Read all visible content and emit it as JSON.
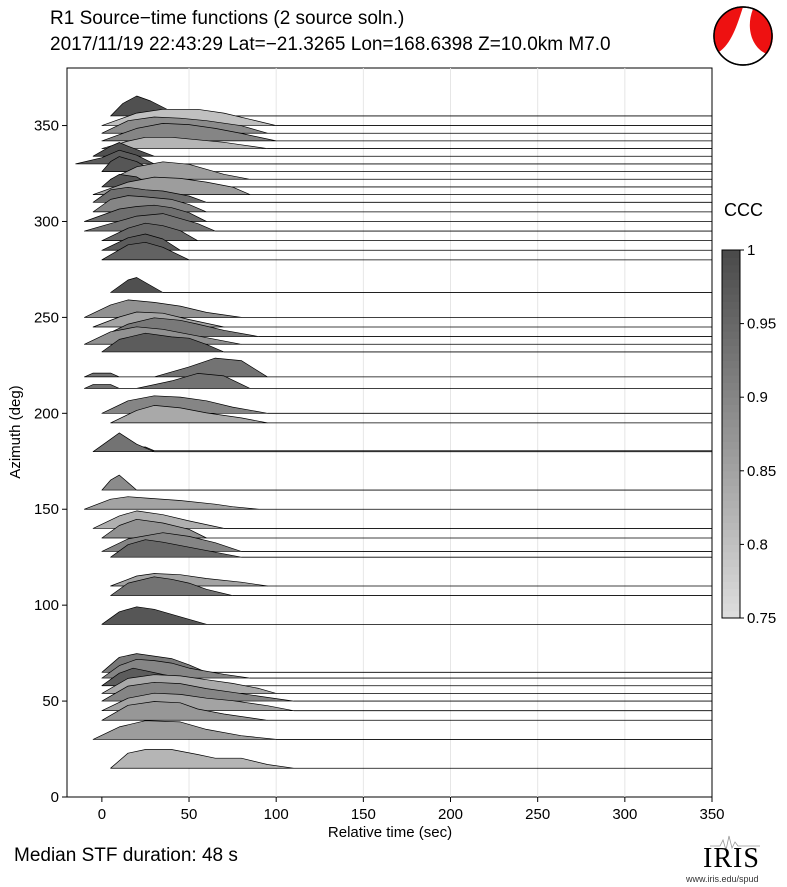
{
  "title_line1": "R1 Source−time functions (2 source soln.)",
  "title_line2": "2017/11/19 22:43:29  Lat=−21.3265 Lon=168.6398  Z=10.0km  M7.0",
  "median_text": "Median STF duration: 48 s",
  "iris": {
    "logo_text": "IRIS",
    "url": "www.iris.edu/spud"
  },
  "chart_data": {
    "type": "area",
    "xlabel": "Relative time (sec)",
    "ylabel": "Azimuth (deg)",
    "xlim": [
      -20,
      350
    ],
    "ylim": [
      0,
      380
    ],
    "xticks": [
      0,
      50,
      100,
      150,
      200,
      250,
      300,
      350
    ],
    "yticks": [
      0,
      50,
      100,
      150,
      200,
      250,
      300,
      350
    ],
    "grid": "vertical",
    "colorbar": {
      "label": "CCC",
      "range": [
        0.75,
        1
      ],
      "ticks": [
        "0.75",
        "0.8",
        "0.85",
        "0.9",
        "0.95",
        "1"
      ]
    },
    "traces": [
      {
        "az": 15,
        "ccc": 0.82,
        "x": [
          5,
          15,
          25,
          40,
          55,
          65,
          80,
          95,
          110
        ],
        "y": [
          0,
          12,
          15,
          15,
          11,
          8,
          8,
          3,
          0
        ]
      },
      {
        "az": 30,
        "ccc": 0.86,
        "x": [
          -5,
          10,
          25,
          45,
          60,
          80,
          100
        ],
        "y": [
          0,
          10,
          15,
          14,
          8,
          3,
          0
        ]
      },
      {
        "az": 40,
        "ccc": 0.87,
        "x": [
          0,
          15,
          30,
          45,
          55,
          70,
          95
        ],
        "y": [
          0,
          12,
          15,
          14,
          9,
          5,
          0
        ]
      },
      {
        "az": 45,
        "ccc": 0.85,
        "x": [
          0,
          15,
          30,
          45,
          60,
          75,
          95,
          110
        ],
        "y": [
          0,
          10,
          14,
          13,
          10,
          8,
          4,
          0
        ]
      },
      {
        "az": 50,
        "ccc": 0.9,
        "x": [
          0,
          15,
          30,
          45,
          60,
          75,
          90,
          110
        ],
        "y": [
          0,
          12,
          15,
          14,
          10,
          7,
          4,
          0
        ]
      },
      {
        "az": 54,
        "ccc": 0.84,
        "x": [
          0,
          15,
          30,
          45,
          60,
          75,
          90,
          100
        ],
        "y": [
          0,
          12,
          15,
          14,
          11,
          8,
          4,
          0
        ]
      },
      {
        "az": 58,
        "ccc": 0.97,
        "x": [
          0,
          10,
          18,
          25,
          35,
          50,
          70
        ],
        "y": [
          0,
          10,
          14,
          12,
          9,
          5,
          0
        ]
      },
      {
        "az": 62,
        "ccc": 0.9,
        "x": [
          0,
          10,
          20,
          30,
          40,
          50,
          70,
          85
        ],
        "y": [
          0,
          10,
          15,
          14,
          12,
          8,
          3,
          0
        ]
      },
      {
        "az": 65,
        "ccc": 0.92,
        "x": [
          0,
          10,
          20,
          30,
          40,
          50,
          60
        ],
        "y": [
          0,
          12,
          15,
          13,
          11,
          6,
          0
        ]
      },
      {
        "az": 90,
        "ccc": 0.98,
        "x": [
          0,
          10,
          20,
          30,
          45,
          60
        ],
        "y": [
          0,
          10,
          14,
          12,
          6,
          0
        ]
      },
      {
        "az": 105,
        "ccc": 0.93,
        "x": [
          5,
          15,
          30,
          40,
          50,
          60,
          75
        ],
        "y": [
          0,
          10,
          15,
          13,
          10,
          5,
          0
        ]
      },
      {
        "az": 110,
        "ccc": 0.85,
        "x": [
          5,
          20,
          30,
          45,
          60,
          80,
          95
        ],
        "y": [
          0,
          8,
          10,
          9,
          6,
          3,
          0
        ]
      },
      {
        "az": 125,
        "ccc": 0.95,
        "x": [
          5,
          15,
          25,
          35,
          50,
          65,
          80
        ],
        "y": [
          0,
          10,
          14,
          12,
          8,
          4,
          0
        ]
      },
      {
        "az": 128,
        "ccc": 0.9,
        "x": [
          0,
          15,
          35,
          50,
          65,
          80
        ],
        "y": [
          0,
          10,
          15,
          12,
          7,
          0
        ]
      },
      {
        "az": 135,
        "ccc": 0.88,
        "x": [
          0,
          10,
          20,
          35,
          50,
          60
        ],
        "y": [
          0,
          10,
          15,
          12,
          7,
          0
        ]
      },
      {
        "az": 140,
        "ccc": 0.83,
        "x": [
          -5,
          10,
          20,
          35,
          50,
          70
        ],
        "y": [
          0,
          10,
          14,
          11,
          6,
          0
        ]
      },
      {
        "az": 150,
        "ccc": 0.85,
        "x": [
          -10,
          5,
          15,
          25,
          45,
          65,
          75,
          90
        ],
        "y": [
          0,
          8,
          10,
          9,
          7,
          4,
          2,
          0
        ]
      },
      {
        "az": 160,
        "ccc": 0.89,
        "x": [
          0,
          5,
          10,
          20
        ],
        "y": [
          0,
          8,
          12,
          0
        ]
      },
      {
        "az": 180,
        "ccc": 0.93,
        "x": [
          -5,
          5,
          10,
          20,
          30
        ],
        "y": [
          0,
          10,
          15,
          6,
          0
        ]
      },
      {
        "az": 180.5,
        "ccc": 0.87,
        "x": [
          15,
          20,
          25,
          30
        ],
        "y": [
          0,
          3,
          3,
          0
        ]
      },
      {
        "az": 195,
        "ccc": 0.84,
        "x": [
          5,
          20,
          30,
          45,
          60,
          80,
          95
        ],
        "y": [
          0,
          10,
          14,
          12,
          8,
          4,
          0
        ]
      },
      {
        "az": 200,
        "ccc": 0.9,
        "x": [
          0,
          15,
          30,
          45,
          60,
          75,
          95
        ],
        "y": [
          0,
          10,
          14,
          13,
          10,
          5,
          0
        ]
      },
      {
        "az": 213,
        "ccc": 0.93,
        "x": [
          -10,
          -5,
          5,
          10,
          20,
          40,
          55,
          70,
          85
        ],
        "y": [
          0,
          3,
          3,
          0,
          0,
          6,
          12,
          10,
          0
        ]
      },
      {
        "az": 219,
        "ccc": 0.93,
        "x": [
          -10,
          -5,
          5,
          10,
          30,
          50,
          65,
          80,
          95
        ],
        "y": [
          0,
          3,
          3,
          0,
          0,
          8,
          15,
          13,
          0
        ]
      },
      {
        "az": 232,
        "ccc": 0.97,
        "x": [
          0,
          10,
          25,
          40,
          50,
          60,
          70
        ],
        "y": [
          0,
          10,
          15,
          12,
          11,
          6,
          0
        ]
      },
      {
        "az": 236,
        "ccc": 0.88,
        "x": [
          -10,
          5,
          20,
          35,
          50,
          65,
          80
        ],
        "y": [
          0,
          10,
          14,
          12,
          8,
          4,
          0
        ]
      },
      {
        "az": 240,
        "ccc": 0.92,
        "x": [
          0,
          15,
          30,
          45,
          55,
          70,
          90
        ],
        "y": [
          0,
          10,
          15,
          13,
          10,
          5,
          0
        ]
      },
      {
        "az": 245,
        "ccc": 0.85,
        "x": [
          -5,
          10,
          20,
          35,
          50,
          70
        ],
        "y": [
          0,
          8,
          12,
          11,
          6,
          0
        ]
      },
      {
        "az": 250,
        "ccc": 0.88,
        "x": [
          -10,
          5,
          15,
          30,
          45,
          60,
          80
        ],
        "y": [
          0,
          10,
          14,
          12,
          9,
          4,
          0
        ]
      },
      {
        "az": 263,
        "ccc": 0.99,
        "x": [
          5,
          15,
          20,
          25,
          35
        ],
        "y": [
          0,
          10,
          12,
          8,
          0
        ]
      },
      {
        "az": 280,
        "ccc": 0.96,
        "x": [
          0,
          15,
          25,
          35,
          50
        ],
        "y": [
          0,
          12,
          14,
          10,
          0
        ]
      },
      {
        "az": 285,
        "ccc": 0.97,
        "x": [
          0,
          15,
          25,
          35,
          45
        ],
        "y": [
          0,
          10,
          13,
          9,
          0
        ]
      },
      {
        "az": 290,
        "ccc": 0.95,
        "x": [
          0,
          15,
          25,
          35,
          45,
          55
        ],
        "y": [
          0,
          10,
          14,
          12,
          8,
          0
        ]
      },
      {
        "az": 295,
        "ccc": 0.93,
        "x": [
          -10,
          10,
          20,
          35,
          45,
          55,
          65
        ],
        "y": [
          0,
          8,
          12,
          14,
          10,
          6,
          0
        ]
      },
      {
        "az": 300,
        "ccc": 0.94,
        "x": [
          -10,
          10,
          20,
          30,
          40,
          50,
          60
        ],
        "y": [
          0,
          10,
          12,
          13,
          11,
          7,
          0
        ]
      },
      {
        "az": 305,
        "ccc": 0.9,
        "x": [
          -5,
          5,
          15,
          25,
          40,
          50,
          60
        ],
        "y": [
          0,
          10,
          13,
          12,
          10,
          6,
          0
        ]
      },
      {
        "az": 310,
        "ccc": 0.94,
        "x": [
          -5,
          5,
          15,
          25,
          35,
          50,
          60
        ],
        "y": [
          0,
          10,
          12,
          10,
          9,
          5,
          0
        ]
      },
      {
        "az": 314,
        "ccc": 0.86,
        "x": [
          -5,
          15,
          30,
          45,
          60,
          75,
          85
        ],
        "y": [
          0,
          10,
          14,
          13,
          10,
          6,
          0
        ]
      },
      {
        "az": 318,
        "ccc": 0.98,
        "x": [
          0,
          5,
          10,
          20,
          30
        ],
        "y": [
          0,
          6,
          10,
          8,
          0
        ]
      },
      {
        "az": 322,
        "ccc": 0.86,
        "x": [
          5,
          20,
          35,
          50,
          60,
          70,
          85
        ],
        "y": [
          0,
          10,
          14,
          12,
          8,
          4,
          0
        ]
      },
      {
        "az": 326,
        "ccc": 0.98,
        "x": [
          0,
          5,
          10,
          20,
          30
        ],
        "y": [
          0,
          8,
          12,
          8,
          0
        ]
      },
      {
        "az": 330,
        "ccc": 0.97,
        "x": [
          -15,
          0,
          10,
          20,
          30
        ],
        "y": [
          0,
          5,
          11,
          7,
          0
        ]
      },
      {
        "az": 334,
        "ccc": 0.99,
        "x": [
          -5,
          5,
          10,
          15,
          30
        ],
        "y": [
          0,
          8,
          11,
          8,
          0
        ]
      },
      {
        "az": 338,
        "ccc": 0.82,
        "x": [
          0,
          15,
          25,
          40,
          55,
          70,
          80,
          95
        ],
        "y": [
          0,
          6,
          9,
          9,
          7,
          5,
          3,
          0
        ]
      },
      {
        "az": 342,
        "ccc": 0.9,
        "x": [
          0,
          20,
          35,
          50,
          65,
          80,
          100
        ],
        "y": [
          0,
          10,
          14,
          13,
          10,
          6,
          0
        ]
      },
      {
        "az": 346,
        "ccc": 0.89,
        "x": [
          0,
          15,
          30,
          45,
          60,
          80,
          95
        ],
        "y": [
          0,
          10,
          13,
          12,
          10,
          6,
          0
        ]
      },
      {
        "az": 350,
        "ccc": 0.8,
        "x": [
          0,
          20,
          35,
          55,
          70,
          85,
          100
        ],
        "y": [
          0,
          10,
          13,
          13,
          10,
          5,
          0
        ]
      },
      {
        "az": 355,
        "ccc": 0.99,
        "x": [
          5,
          12,
          20,
          28,
          45
        ],
        "y": [
          0,
          10,
          16,
          12,
          0
        ]
      }
    ]
  }
}
